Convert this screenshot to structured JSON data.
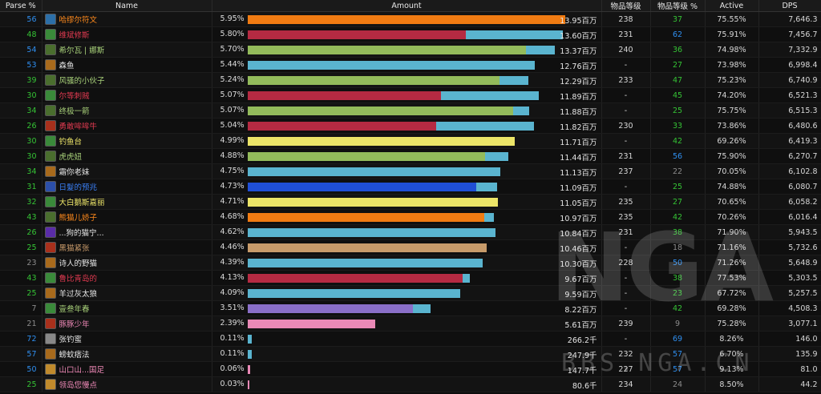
{
  "headers": {
    "parse": "Parse %",
    "name": "Name",
    "amount": "Amount",
    "ilvl": "物品等级",
    "ilvl_pct": "物品等级 %",
    "active": "Active",
    "dps": "DPS"
  },
  "watermark": "NGA",
  "watermark_url": "BBS.NGA.CN",
  "rows": [
    {
      "parse": "56",
      "parse_color": "#2f8ff0",
      "name": "哈缪尔符文",
      "name_color": "#ff8a1c",
      "icon_color": "#2c6fa8",
      "pct": "5.95%",
      "bar_frac": 1.0,
      "bar_color": "#f07b12",
      "bar2_frac": 0,
      "amount": "13.95百万",
      "ilvl": "238",
      "ilvl_pct": "37",
      "ilvl_pct_color": "#35c435",
      "active": "75.55%",
      "dps": "7,646.3"
    },
    {
      "parse": "48",
      "parse_color": "#35c435",
      "name": "维斌修斯",
      "name_color": "#e03a50",
      "icon_color": "#3a8a3a",
      "pct": "5.80%",
      "bar_frac": 0.688,
      "bar_color": "#b52a42",
      "bar2_frac": 0.305,
      "amount": "13.60百万",
      "ilvl": "231",
      "ilvl_pct": "62",
      "ilvl_pct_color": "#2f8ff0",
      "active": "75.91%",
      "dps": "7,456.7"
    },
    {
      "parse": "54",
      "parse_color": "#2f8ff0",
      "name": "希尔瓦 | 娜斯",
      "name_color": "#a9d27a",
      "icon_color": "#4a6e2e",
      "pct": "5.70%",
      "bar_frac": 0.876,
      "bar_color": "#93bb5b",
      "bar2_frac": 0.09,
      "amount": "13.37百万",
      "ilvl": "240",
      "ilvl_pct": "36",
      "ilvl_pct_color": "#35c435",
      "active": "74.98%",
      "dps": "7,332.9"
    },
    {
      "parse": "53",
      "parse_color": "#2f8ff0",
      "name": "森鱼",
      "name_color": "#e6e6e6",
      "icon_color": "#a86a1c",
      "pct": "5.44%",
      "bar_frac": 0.0,
      "bar_color": "#5ab4cf",
      "bar2_frac": 0.905,
      "amount": "12.76百万",
      "ilvl": "-",
      "ilvl_pct": "27",
      "ilvl_pct_color": "#35c435",
      "active": "73.98%",
      "dps": "6,998.4"
    },
    {
      "parse": "39",
      "parse_color": "#35c435",
      "name": "风骚的小伙子",
      "name_color": "#a9d27a",
      "icon_color": "#4a6e2e",
      "pct": "5.24%",
      "bar_frac": 0.792,
      "bar_color": "#93bb5b",
      "bar2_frac": 0.09,
      "amount": "12.29百万",
      "ilvl": "233",
      "ilvl_pct": "47",
      "ilvl_pct_color": "#35c435",
      "active": "75.23%",
      "dps": "6,740.9"
    },
    {
      "parse": "30",
      "parse_color": "#35c435",
      "name": "尔等刺贼",
      "name_color": "#e03a50",
      "icon_color": "#3a8a3a",
      "pct": "5.07%",
      "bar_frac": 0.609,
      "bar_color": "#b52a42",
      "bar2_frac": 0.308,
      "amount": "11.89百万",
      "ilvl": "-",
      "ilvl_pct": "45",
      "ilvl_pct_color": "#35c435",
      "active": "74.20%",
      "dps": "6,521.3"
    },
    {
      "parse": "34",
      "parse_color": "#35c435",
      "name": "终极一箭",
      "name_color": "#a9d27a",
      "icon_color": "#4a6e2e",
      "pct": "5.07%",
      "bar_frac": 0.836,
      "bar_color": "#93bb5b",
      "bar2_frac": 0.05,
      "amount": "11.88百万",
      "ilvl": "-",
      "ilvl_pct": "25",
      "ilvl_pct_color": "#35c435",
      "active": "75.75%",
      "dps": "6,515.3"
    },
    {
      "parse": "26",
      "parse_color": "#35c435",
      "name": "勇敢哞哞牛",
      "name_color": "#e03a50",
      "icon_color": "#a8301c",
      "pct": "5.04%",
      "bar_frac": 0.594,
      "bar_color": "#b52a42",
      "bar2_frac": 0.308,
      "amount": "11.82百万",
      "ilvl": "230",
      "ilvl_pct": "33",
      "ilvl_pct_color": "#35c435",
      "active": "73.86%",
      "dps": "6,480.6"
    },
    {
      "parse": "30",
      "parse_color": "#35c435",
      "name": "钓鱼台",
      "name_color": "#f0e86a",
      "icon_color": "#3a8a3a",
      "pct": "4.99%",
      "bar_frac": 0.841,
      "bar_color": "#ece568",
      "bar2_frac": 0,
      "amount": "11.71百万",
      "ilvl": "-",
      "ilvl_pct": "42",
      "ilvl_pct_color": "#35c435",
      "active": "69.26%",
      "dps": "6,419.3"
    },
    {
      "parse": "30",
      "parse_color": "#35c435",
      "name": "虎虎妞",
      "name_color": "#a9d27a",
      "icon_color": "#4a6e2e",
      "pct": "4.88%",
      "bar_frac": 0.747,
      "bar_color": "#93bb5b",
      "bar2_frac": 0.072,
      "amount": "11.44百万",
      "ilvl": "231",
      "ilvl_pct": "56",
      "ilvl_pct_color": "#2f8ff0",
      "active": "75.90%",
      "dps": "6,270.7"
    },
    {
      "parse": "34",
      "parse_color": "#35c435",
      "name": "霜你老妹",
      "name_color": "#e6e6e6",
      "icon_color": "#a86a1c",
      "pct": "4.75%",
      "bar_frac": 0.0,
      "bar_color": "#5ab4cf",
      "bar2_frac": 0.796,
      "amount": "11.13百万",
      "ilvl": "237",
      "ilvl_pct": "22",
      "ilvl_pct_color": "#8c8c8c",
      "active": "70.05%",
      "dps": "6,102.8"
    },
    {
      "parse": "31",
      "parse_color": "#35c435",
      "name": "日髮的预兆",
      "name_color": "#3a7ff5",
      "icon_color": "#2c4fa8",
      "pct": "4.73%",
      "bar_frac": 0.72,
      "bar_color": "#1f4fd6",
      "bar2_frac": 0.066,
      "amount": "11.09百万",
      "ilvl": "-",
      "ilvl_pct": "25",
      "ilvl_pct_color": "#35c435",
      "active": "74.88%",
      "dps": "6,080.7"
    },
    {
      "parse": "32",
      "parse_color": "#35c435",
      "name": "大白鹅斯嘉丽",
      "name_color": "#f0e86a",
      "icon_color": "#3a8a3a",
      "pct": "4.71%",
      "bar_frac": 0.788,
      "bar_color": "#ece568",
      "bar2_frac": 0,
      "amount": "11.05百万",
      "ilvl": "235",
      "ilvl_pct": "27",
      "ilvl_pct_color": "#35c435",
      "active": "70.65%",
      "dps": "6,058.2"
    },
    {
      "parse": "43",
      "parse_color": "#35c435",
      "name": "熊猫儿娇子",
      "name_color": "#ff8a1c",
      "icon_color": "#4a6e2e",
      "pct": "4.68%",
      "bar_frac": 0.744,
      "bar_color": "#f07b12",
      "bar2_frac": 0.03,
      "amount": "10.97百万",
      "ilvl": "235",
      "ilvl_pct": "42",
      "ilvl_pct_color": "#35c435",
      "active": "70.26%",
      "dps": "6,016.4"
    },
    {
      "parse": "26",
      "parse_color": "#35c435",
      "name": "...狗的猫宁...",
      "name_color": "#e6e6e6",
      "icon_color": "#5a2ca8",
      "pct": "4.62%",
      "bar_frac": 0.0,
      "bar_color": "#5ab4cf",
      "bar2_frac": 0.78,
      "amount": "10.84百万",
      "ilvl": "231",
      "ilvl_pct": "38",
      "ilvl_pct_color": "#35c435",
      "active": "71.90%",
      "dps": "5,943.5"
    },
    {
      "parse": "25",
      "parse_color": "#35c435",
      "name": "黑猫紧张",
      "name_color": "#c89a6a",
      "icon_color": "#a8301c",
      "pct": "4.46%",
      "bar_frac": 0.753,
      "bar_color": "#c79b6a",
      "bar2_frac": 0,
      "amount": "10.46百万",
      "ilvl": "-",
      "ilvl_pct": "18",
      "ilvl_pct_color": "#8c8c8c",
      "active": "71.16%",
      "dps": "5,732.6"
    },
    {
      "parse": "23",
      "parse_color": "#8c8c8c",
      "name": "诗人的野猫",
      "name_color": "#e6e6e6",
      "icon_color": "#a86a1c",
      "pct": "4.39%",
      "bar_frac": 0.0,
      "bar_color": "#5ab4cf",
      "bar2_frac": 0.74,
      "amount": "10.30百万",
      "ilvl": "228",
      "ilvl_pct": "50",
      "ilvl_pct_color": "#2f8ff0",
      "active": "71.26%",
      "dps": "5,648.9"
    },
    {
      "parse": "43",
      "parse_color": "#35c435",
      "name": "鲁比青岛的",
      "name_color": "#e03a50",
      "icon_color": "#3a8a3a",
      "pct": "4.13%",
      "bar_frac": 0.678,
      "bar_color": "#b52a42",
      "bar2_frac": 0.022,
      "amount": "9.67百万",
      "ilvl": "-",
      "ilvl_pct": "38",
      "ilvl_pct_color": "#35c435",
      "active": "77.53%",
      "dps": "5,303.5"
    },
    {
      "parse": "25",
      "parse_color": "#35c435",
      "name": "羊过灰太狼",
      "name_color": "#e6e6e6",
      "icon_color": "#a86a1c",
      "pct": "4.09%",
      "bar_frac": 0.0,
      "bar_color": "#5ab4cf",
      "bar2_frac": 0.67,
      "amount": "9.59百万",
      "ilvl": "-",
      "ilvl_pct": "23",
      "ilvl_pct_color": "#35c435",
      "active": "67.72%",
      "dps": "5,257.5"
    },
    {
      "parse": "7",
      "parse_color": "#8c8c8c",
      "name": "壹叁年春",
      "name_color": "#a9d27a",
      "icon_color": "#3a8a3a",
      "pct": "3.51%",
      "bar_frac": 0.52,
      "bar_color": "#8a6fc8",
      "bar2_frac": 0.055,
      "amount": "8.22百万",
      "ilvl": "-",
      "ilvl_pct": "42",
      "ilvl_pct_color": "#35c435",
      "active": "69.28%",
      "dps": "4,508.3"
    },
    {
      "parse": "21",
      "parse_color": "#8c8c8c",
      "name": "豚豚少年",
      "name_color": "#f08ab8",
      "icon_color": "#a8301c",
      "pct": "2.39%",
      "bar_frac": 0.402,
      "bar_color": "#e989b6",
      "bar2_frac": 0,
      "amount": "5.61百万",
      "ilvl": "239",
      "ilvl_pct": "9",
      "ilvl_pct_color": "#8c8c8c",
      "active": "75.28%",
      "dps": "3,077.1"
    },
    {
      "parse": "72",
      "parse_color": "#2f8ff0",
      "name": "张钓蜜",
      "name_color": "#e6e6e6",
      "icon_color": "#888888",
      "pct": "0.11%",
      "bar_frac": 0.0,
      "bar_color": "#5ab4cf",
      "bar2_frac": 0.012,
      "amount": "266.2千",
      "ilvl": "-",
      "ilvl_pct": "69",
      "ilvl_pct_color": "#2f8ff0",
      "active": "8.26%",
      "dps": "146.0"
    },
    {
      "parse": "57",
      "parse_color": "#2f8ff0",
      "name": "螃蚊痞法",
      "name_color": "#e6e6e6",
      "icon_color": "#a86a1c",
      "pct": "0.11%",
      "bar_frac": 0.0,
      "bar_color": "#5ab4cf",
      "bar2_frac": 0.012,
      "amount": "247.9千",
      "ilvl": "232",
      "ilvl_pct": "57",
      "ilvl_pct_color": "#2f8ff0",
      "active": "6.70%",
      "dps": "135.9"
    },
    {
      "parse": "50",
      "parse_color": "#2f8ff0",
      "name": "山口山...国足",
      "name_color": "#f08ab8",
      "icon_color": "#c08a2c",
      "pct": "0.06%",
      "bar_frac": 0.008,
      "bar_color": "#e989b6",
      "bar2_frac": 0,
      "amount": "147.7千",
      "ilvl": "227",
      "ilvl_pct": "57",
      "ilvl_pct_color": "#2f8ff0",
      "active": "9.13%",
      "dps": "81.0"
    },
    {
      "parse": "25",
      "parse_color": "#35c435",
      "name": "领岛您慢点",
      "name_color": "#f08ab8",
      "icon_color": "#c08a2c",
      "pct": "0.03%",
      "bar_frac": 0.005,
      "bar_color": "#e989b6",
      "bar2_frac": 0,
      "amount": "80.6千",
      "ilvl": "234",
      "ilvl_pct": "24",
      "ilvl_pct_color": "#8c8c8c",
      "active": "8.50%",
      "dps": "44.2"
    }
  ]
}
